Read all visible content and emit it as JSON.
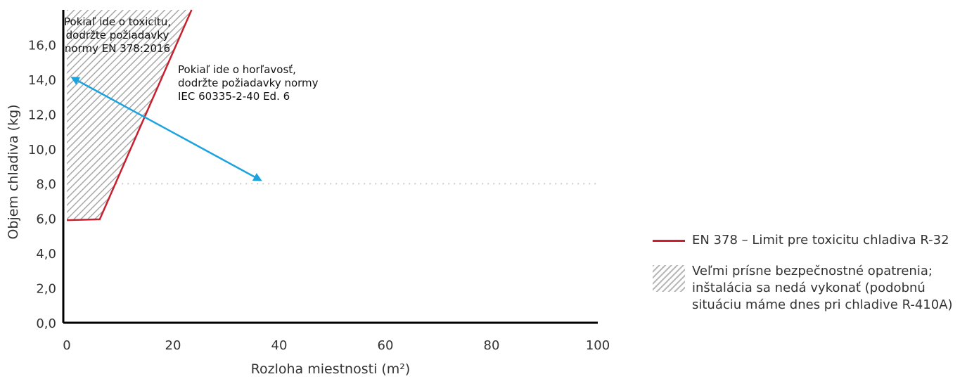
{
  "chart_data": {
    "type": "line",
    "title": "",
    "xlabel": "Rozloha miestnosti (m²)",
    "ylabel": "Objem chladiva (kg)",
    "xlim": [
      0,
      100
    ],
    "ylim": [
      0,
      18
    ],
    "x_ticks": [
      "0",
      "20",
      "40",
      "60",
      "80",
      "100"
    ],
    "x_tick_values": [
      0,
      20,
      40,
      60,
      80,
      100
    ],
    "y_ticks": [
      "0,0",
      "2,0",
      "4,0",
      "6,0",
      "8,0",
      "10,0",
      "12,0",
      "14,0",
      "16,0"
    ],
    "y_tick_values": [
      0,
      2,
      4,
      6,
      8,
      10,
      12,
      14,
      16
    ],
    "grid": false,
    "series": [
      {
        "name": "EN 378 – Limit pre toxicitu chladiva R-32",
        "color": "#c8202f",
        "x": [
          0,
          6.2,
          23.5
        ],
        "y": [
          5.9,
          5.95,
          18
        ]
      }
    ],
    "hatched_region": {
      "name": "Veľmi prísne bezpečnostné opatrenia; inštalácia sa nedá vykonať (podobnú situáciu máme dnes pri chladive R-410A)",
      "x": [
        0,
        0,
        23.5,
        6.2,
        0
      ],
      "y": [
        5.9,
        18,
        18,
        5.95,
        5.9
      ]
    },
    "reference_line": {
      "y": 8.0,
      "x_range": [
        9.3,
        100
      ],
      "style": "dotted",
      "color": "#cccccc"
    },
    "arrow": {
      "from": [
        1,
        14.1
      ],
      "to": [
        36.5,
        8.2
      ],
      "color": "#1ba3e0",
      "double_headed": true
    },
    "annotations": [
      {
        "lines": [
          "Pokiaľ ide o toxicitu,",
          "dodržte požiadavky",
          "normy EN 378:2016"
        ]
      },
      {
        "lines": [
          "Pokiaľ ide o horľavosť,",
          "dodržte požiadavky normy",
          "IEC 60335-2-40 Ed. 6"
        ]
      }
    ],
    "legend": {
      "placement": "right",
      "items": [
        {
          "type": "line",
          "lines": [
            "EN 378 – Limit pre toxicitu chladiva R-32"
          ]
        },
        {
          "type": "hatch",
          "lines": [
            "Veľmi prísne bezpečnostné opatrenia;",
            "inštalácia sa nedá vykonať (podobnú",
            "situáciu máme dnes pri chladive R-410A)"
          ]
        }
      ]
    }
  }
}
